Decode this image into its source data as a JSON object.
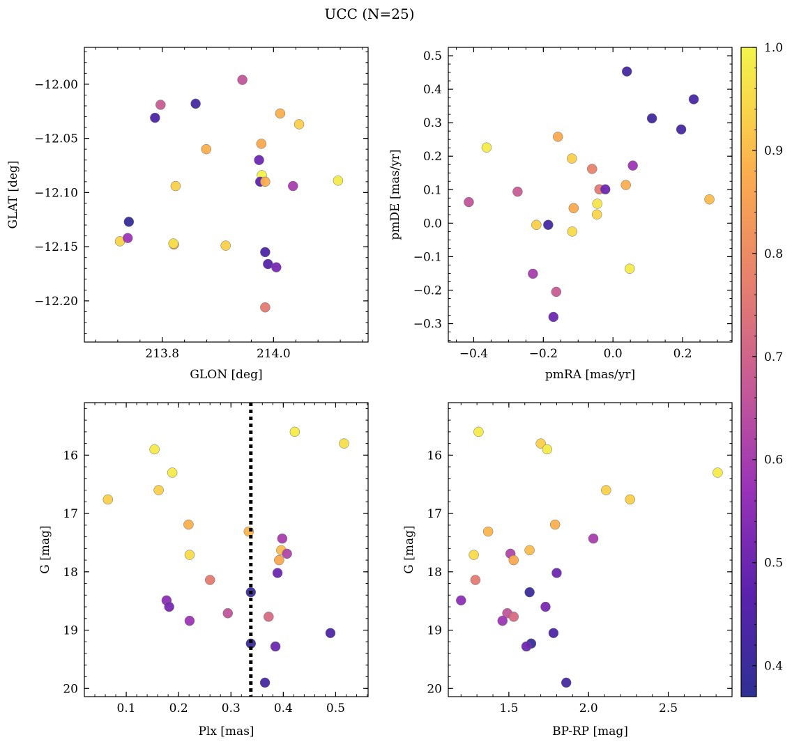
{
  "chart_data": [
    {
      "type": "scatter",
      "title": "UCC (N=25)",
      "xlabel": "GLON [deg]",
      "ylabel": "GLAT [deg]",
      "xlim": [
        213.66,
        214.17
      ],
      "ylim": [
        -12.238,
        -11.966
      ],
      "xticks": [
        213.8,
        214.0
      ],
      "xtick_labels": [
        "213.8",
        "214.0"
      ],
      "yticks": [
        -12.0,
        -12.05,
        -12.1,
        -12.15,
        -12.2
      ],
      "ytick_labels": [
        "−12.00",
        "−12.05",
        "−12.10",
        "−12.15",
        "−12.20"
      ],
      "points": [
        {
          "x": 213.944,
          "y": -11.996,
          "c": 0.66
        },
        {
          "x": 213.797,
          "y": -12.019,
          "c": 0.68
        },
        {
          "x": 213.86,
          "y": -12.018,
          "c": 0.42
        },
        {
          "x": 213.787,
          "y": -12.031,
          "c": 0.44
        },
        {
          "x": 214.012,
          "y": -12.027,
          "c": 0.88
        },
        {
          "x": 214.046,
          "y": -12.037,
          "c": 0.93
        },
        {
          "x": 213.978,
          "y": -12.055,
          "c": 0.87
        },
        {
          "x": 213.879,
          "y": -12.06,
          "c": 0.88
        },
        {
          "x": 213.974,
          "y": -12.07,
          "c": 0.5
        },
        {
          "x": 213.979,
          "y": -12.084,
          "c": 0.99
        },
        {
          "x": 213.976,
          "y": -12.09,
          "c": 0.48
        },
        {
          "x": 213.985,
          "y": -12.09,
          "c": 0.88
        },
        {
          "x": 214.035,
          "y": -12.094,
          "c": 0.6
        },
        {
          "x": 213.824,
          "y": -12.094,
          "c": 0.93
        },
        {
          "x": 214.116,
          "y": -12.089,
          "c": 0.98
        },
        {
          "x": 213.74,
          "y": -12.127,
          "c": 0.39
        },
        {
          "x": 213.724,
          "y": -12.145,
          "c": 0.94
        },
        {
          "x": 213.738,
          "y": -12.142,
          "c": 0.58
        },
        {
          "x": 213.821,
          "y": -12.148,
          "c": 0.86
        },
        {
          "x": 213.82,
          "y": -12.147,
          "c": 0.96
        },
        {
          "x": 213.914,
          "y": -12.149,
          "c": 0.93
        },
        {
          "x": 213.985,
          "y": -12.155,
          "c": 0.44
        },
        {
          "x": 213.99,
          "y": -12.166,
          "c": 0.46
        },
        {
          "x": 214.005,
          "y": -12.169,
          "c": 0.52
        },
        {
          "x": 213.985,
          "y": -12.206,
          "c": 0.76
        }
      ]
    },
    {
      "type": "scatter",
      "xlabel": "pmRA [mas/yr]",
      "ylabel": "pmDE [mas/yr]",
      "xlim": [
        -0.473,
        0.342
      ],
      "ylim": [
        -0.355,
        0.525
      ],
      "xticks": [
        -0.4,
        -0.2,
        0.0,
        0.2
      ],
      "xtick_labels": [
        "−0.4",
        "−0.2",
        "0.0",
        "0.2"
      ],
      "yticks": [
        -0.3,
        -0.2,
        -0.1,
        0.0,
        0.1,
        0.2,
        0.3,
        0.4,
        0.5
      ],
      "ytick_labels": [
        "−0.3",
        "−0.2",
        "−0.1",
        "0.0",
        "0.1",
        "0.2",
        "0.3",
        "0.4",
        "0.5"
      ],
      "points": [
        {
          "x": 0.04,
          "y": 0.453,
          "c": 0.42
        },
        {
          "x": 0.232,
          "y": 0.37,
          "c": 0.43
        },
        {
          "x": 0.112,
          "y": 0.313,
          "c": 0.41
        },
        {
          "x": 0.196,
          "y": 0.28,
          "c": 0.42
        },
        {
          "x": -0.158,
          "y": 0.258,
          "c": 0.87
        },
        {
          "x": -0.363,
          "y": 0.226,
          "c": 0.98
        },
        {
          "x": -0.118,
          "y": 0.193,
          "c": 0.93
        },
        {
          "x": 0.057,
          "y": 0.172,
          "c": 0.58
        },
        {
          "x": -0.06,
          "y": 0.162,
          "c": 0.78
        },
        {
          "x": 0.037,
          "y": 0.114,
          "c": 0.88
        },
        {
          "x": -0.039,
          "y": 0.101,
          "c": 0.76
        },
        {
          "x": -0.022,
          "y": 0.101,
          "c": 0.5
        },
        {
          "x": -0.274,
          "y": 0.094,
          "c": 0.68
        },
        {
          "x": 0.277,
          "y": 0.071,
          "c": 0.9
        },
        {
          "x": -0.414,
          "y": 0.063,
          "c": 0.66
        },
        {
          "x": -0.045,
          "y": 0.058,
          "c": 0.97
        },
        {
          "x": -0.113,
          "y": 0.045,
          "c": 0.87
        },
        {
          "x": -0.046,
          "y": 0.026,
          "c": 0.94
        },
        {
          "x": -0.22,
          "y": -0.005,
          "c": 0.93
        },
        {
          "x": -0.186,
          "y": -0.005,
          "c": 0.42
        },
        {
          "x": -0.117,
          "y": -0.025,
          "c": 0.95
        },
        {
          "x": 0.048,
          "y": -0.136,
          "c": 0.98
        },
        {
          "x": -0.23,
          "y": -0.151,
          "c": 0.6
        },
        {
          "x": -0.163,
          "y": -0.205,
          "c": 0.68
        },
        {
          "x": -0.171,
          "y": -0.28,
          "c": 0.5
        }
      ]
    },
    {
      "type": "scatter",
      "xlabel": "Plx [mas]",
      "ylabel": "G [mag]",
      "xlim": [
        0.02,
        0.562
      ],
      "ylim": [
        20.14,
        15.1
      ],
      "y_inverted": true,
      "xticks": [
        0.1,
        0.2,
        0.3,
        0.4,
        0.5
      ],
      "xtick_labels": [
        "0.1",
        "0.2",
        "0.3",
        "0.4",
        "0.5"
      ],
      "yticks": [
        16,
        17,
        18,
        19,
        20
      ],
      "ytick_labels": [
        "16",
        "17",
        "18",
        "19",
        "20"
      ],
      "vline": {
        "x": 0.338,
        "style": "dotted",
        "color": "#000000"
      },
      "points": [
        {
          "x": 0.422,
          "y": 15.6,
          "c": 0.98
        },
        {
          "x": 0.516,
          "y": 15.8,
          "c": 0.96
        },
        {
          "x": 0.154,
          "y": 15.9,
          "c": 0.98
        },
        {
          "x": 0.188,
          "y": 16.3,
          "c": 0.98
        },
        {
          "x": 0.162,
          "y": 16.6,
          "c": 0.93
        },
        {
          "x": 0.065,
          "y": 16.76,
          "c": 0.93
        },
        {
          "x": 0.219,
          "y": 17.19,
          "c": 0.88
        },
        {
          "x": 0.334,
          "y": 17.31,
          "c": 0.89
        },
        {
          "x": 0.398,
          "y": 17.43,
          "c": 0.6
        },
        {
          "x": 0.396,
          "y": 17.63,
          "c": 0.9
        },
        {
          "x": 0.407,
          "y": 17.69,
          "c": 0.62
        },
        {
          "x": 0.221,
          "y": 17.71,
          "c": 0.95
        },
        {
          "x": 0.392,
          "y": 17.8,
          "c": 0.87
        },
        {
          "x": 0.26,
          "y": 18.14,
          "c": 0.76
        },
        {
          "x": 0.389,
          "y": 18.02,
          "c": 0.5
        },
        {
          "x": 0.338,
          "y": 18.35,
          "c": 0.4
        },
        {
          "x": 0.177,
          "y": 18.49,
          "c": 0.55
        },
        {
          "x": 0.182,
          "y": 18.6,
          "c": 0.52
        },
        {
          "x": 0.294,
          "y": 18.71,
          "c": 0.66
        },
        {
          "x": 0.372,
          "y": 18.77,
          "c": 0.72
        },
        {
          "x": 0.221,
          "y": 18.84,
          "c": 0.58
        },
        {
          "x": 0.49,
          "y": 19.05,
          "c": 0.44
        },
        {
          "x": 0.338,
          "y": 19.23,
          "c": 0.4
        },
        {
          "x": 0.385,
          "y": 19.28,
          "c": 0.5
        },
        {
          "x": 0.365,
          "y": 19.9,
          "c": 0.42
        }
      ]
    },
    {
      "type": "scatter",
      "xlabel": "BP-RP [mag]",
      "ylabel": "G [mag]",
      "xlim": [
        1.12,
        2.9
      ],
      "ylim": [
        20.14,
        15.1
      ],
      "y_inverted": true,
      "xticks": [
        1.5,
        2.0,
        2.5
      ],
      "xtick_labels": [
        "1.5",
        "2.0",
        "2.5"
      ],
      "yticks": [
        16,
        17,
        18,
        19,
        20
      ],
      "ytick_labels": [
        "16",
        "17",
        "18",
        "19",
        "20"
      ],
      "points": [
        {
          "x": 1.31,
          "y": 15.6,
          "c": 0.98
        },
        {
          "x": 1.7,
          "y": 15.8,
          "c": 0.93
        },
        {
          "x": 1.74,
          "y": 15.9,
          "c": 0.98
        },
        {
          "x": 2.81,
          "y": 16.3,
          "c": 0.98
        },
        {
          "x": 2.11,
          "y": 16.6,
          "c": 0.93
        },
        {
          "x": 2.26,
          "y": 16.76,
          "c": 0.93
        },
        {
          "x": 1.79,
          "y": 17.19,
          "c": 0.88
        },
        {
          "x": 1.37,
          "y": 17.31,
          "c": 0.89
        },
        {
          "x": 2.03,
          "y": 17.43,
          "c": 0.6
        },
        {
          "x": 1.63,
          "y": 17.63,
          "c": 0.9
        },
        {
          "x": 1.51,
          "y": 17.69,
          "c": 0.62
        },
        {
          "x": 1.28,
          "y": 17.71,
          "c": 0.95
        },
        {
          "x": 1.53,
          "y": 17.8,
          "c": 0.87
        },
        {
          "x": 1.29,
          "y": 18.14,
          "c": 0.76
        },
        {
          "x": 1.8,
          "y": 18.02,
          "c": 0.5
        },
        {
          "x": 1.63,
          "y": 18.35,
          "c": 0.4
        },
        {
          "x": 1.2,
          "y": 18.49,
          "c": 0.55
        },
        {
          "x": 1.73,
          "y": 18.6,
          "c": 0.52
        },
        {
          "x": 1.49,
          "y": 18.71,
          "c": 0.66
        },
        {
          "x": 1.53,
          "y": 18.77,
          "c": 0.72
        },
        {
          "x": 1.46,
          "y": 18.84,
          "c": 0.58
        },
        {
          "x": 1.78,
          "y": 19.05,
          "c": 0.44
        },
        {
          "x": 1.64,
          "y": 19.23,
          "c": 0.4
        },
        {
          "x": 1.61,
          "y": 19.28,
          "c": 0.5
        },
        {
          "x": 1.86,
          "y": 19.9,
          "c": 0.42
        }
      ]
    }
  ],
  "colorbar": {
    "colormap": "plasma",
    "vmin": 0.37,
    "vmax": 1.0,
    "ticks": [
      0.4,
      0.5,
      0.6,
      0.7,
      0.8,
      0.9,
      1.0
    ],
    "tick_labels": [
      "0.4",
      "0.5",
      "0.6",
      "0.7",
      "0.8",
      "0.9",
      "1.0"
    ]
  }
}
